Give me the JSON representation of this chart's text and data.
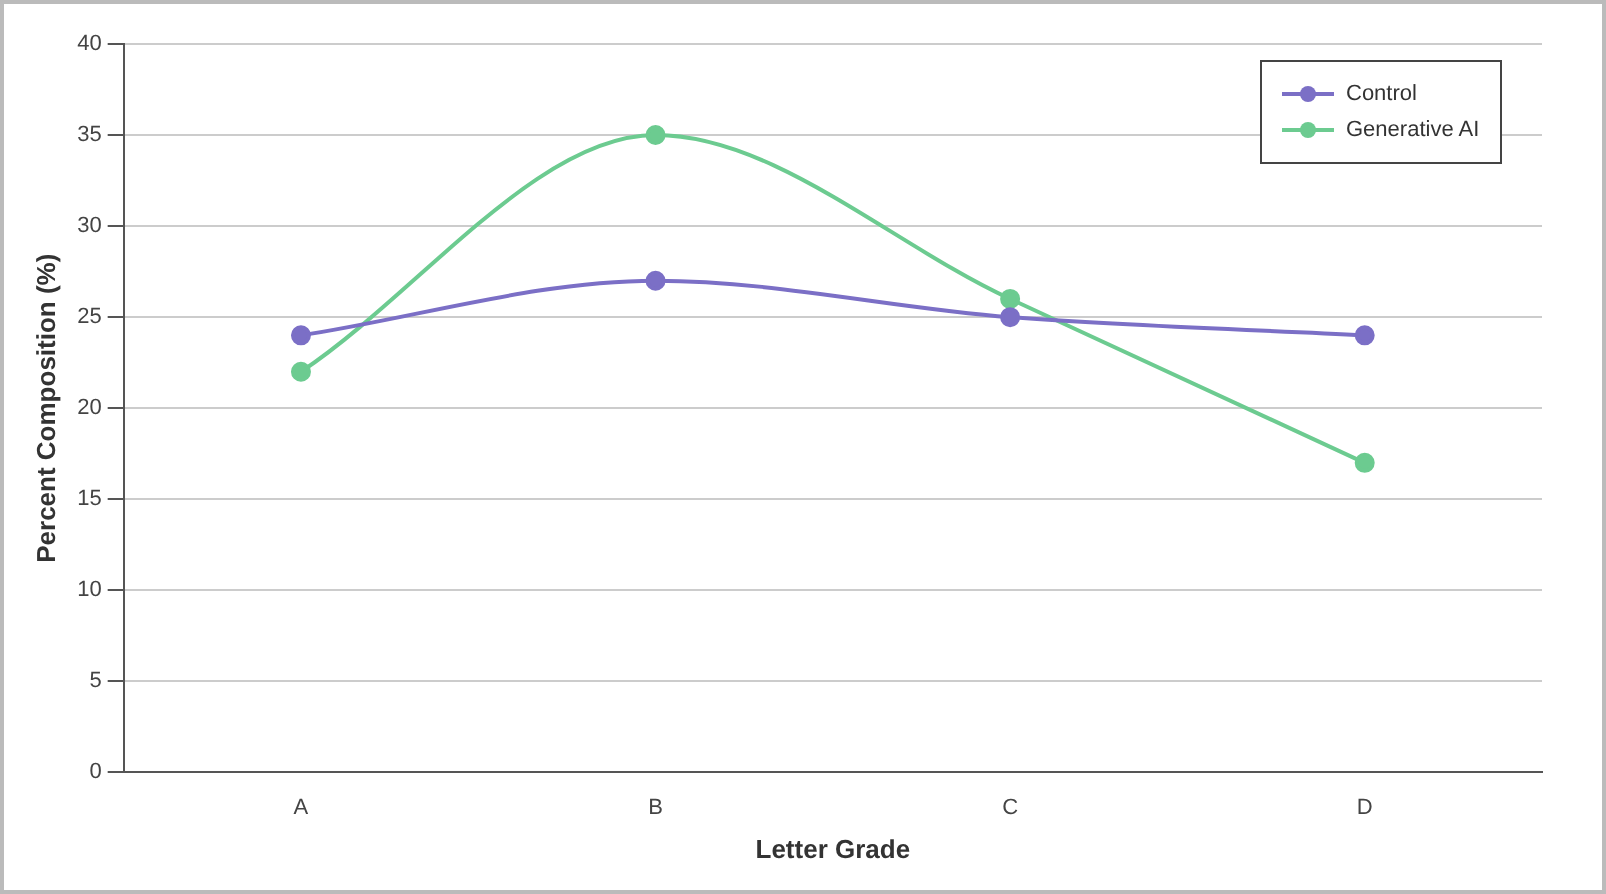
{
  "chart_data": {
    "type": "line",
    "xlabel": "Letter Grade",
    "ylabel": "Percent Composition (%)",
    "categories": [
      "A",
      "B",
      "C",
      "D"
    ],
    "series": [
      {
        "name": "Control",
        "color": "#7b6fc6",
        "values": [
          24,
          27,
          25,
          24
        ]
      },
      {
        "name": "Generative AI",
        "color": "#6ccb90",
        "values": [
          22,
          35,
          26,
          17
        ]
      }
    ],
    "ylim": [
      0,
      40
    ],
    "yticks": [
      0,
      5,
      10,
      15,
      20,
      25,
      30,
      35,
      40
    ],
    "grid": "y",
    "legend": "top right",
    "marker": "circle",
    "line_style": "solid"
  }
}
